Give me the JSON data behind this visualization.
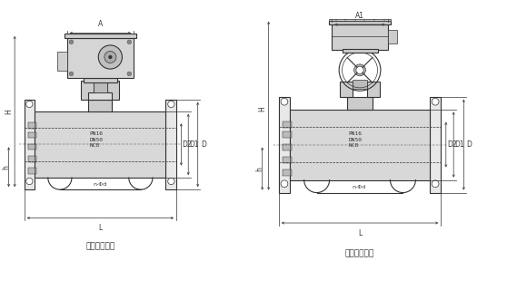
{
  "bg_color": "#ffffff",
  "line_color": "#333333",
  "title1": "电动调节球阀",
  "title2": "电动调节球阀",
  "label_A": "A",
  "label_A1": "A1",
  "label_H": "H",
  "label_h": "h",
  "label_L": "L",
  "label_D": "D",
  "label_D1": "D1",
  "label_D2": "D2",
  "label_spec": "PN16\nDN50\nNC8",
  "label_nphi": "n-Φd",
  "font_size_label": 5.5,
  "font_size_title": 6.5,
  "font_size_spec": 4.5
}
